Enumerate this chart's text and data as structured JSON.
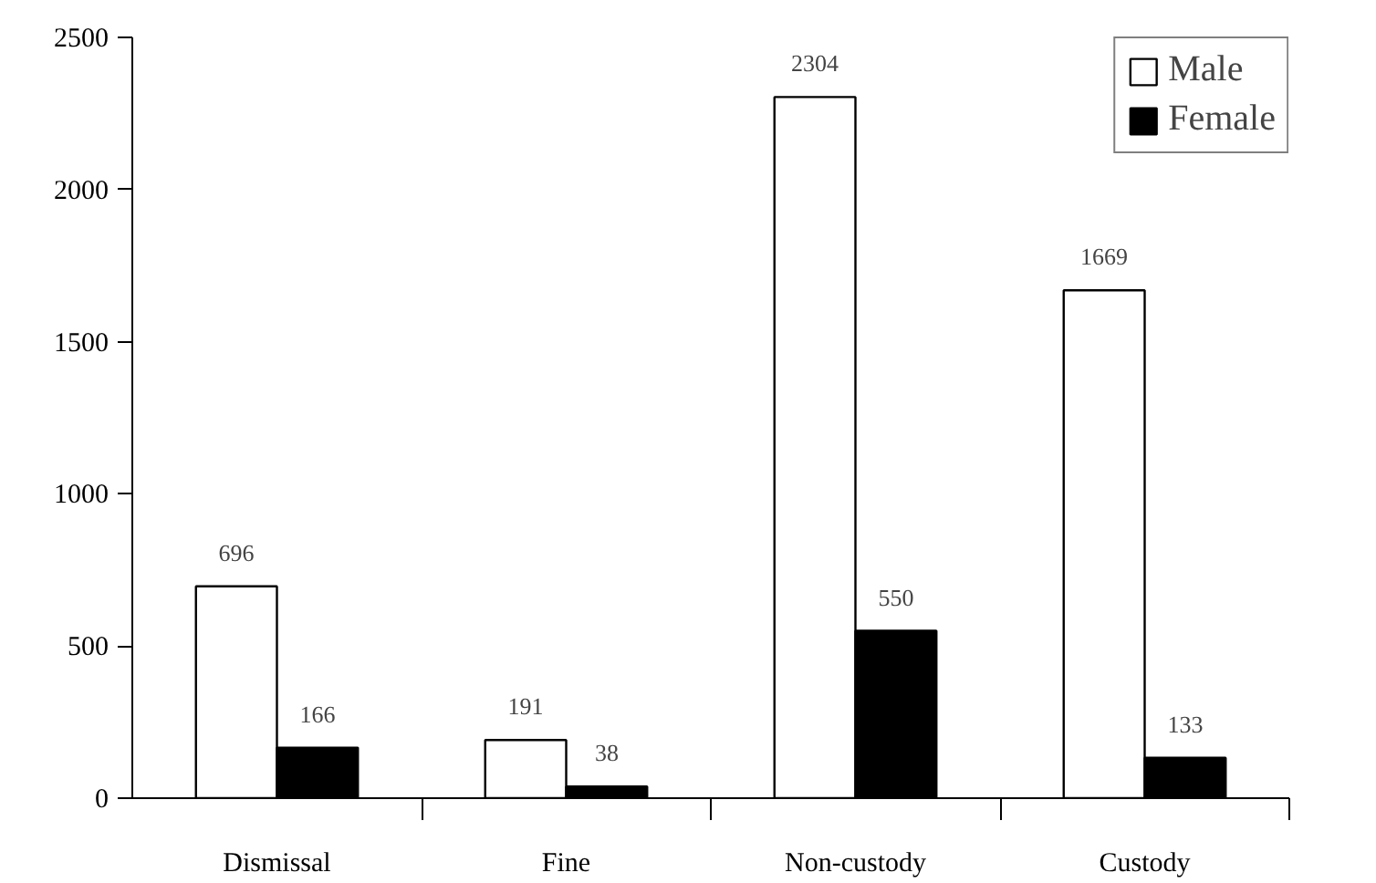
{
  "chart_data": {
    "type": "bar",
    "categories": [
      "Dismissal",
      "Fine",
      "Non-custody",
      "Custody"
    ],
    "series": [
      {
        "name": "Male",
        "color": "#ffffff",
        "values": [
          696,
          191,
          2304,
          1669
        ]
      },
      {
        "name": "Female",
        "color": "#000000",
        "values": [
          166,
          38,
          550,
          133
        ]
      }
    ],
    "ylim": [
      0,
      2500
    ],
    "yticks": [
      0,
      500,
      1000,
      1500,
      2000,
      2500
    ],
    "grid": false,
    "legend": "top right",
    "data_labels": true
  }
}
